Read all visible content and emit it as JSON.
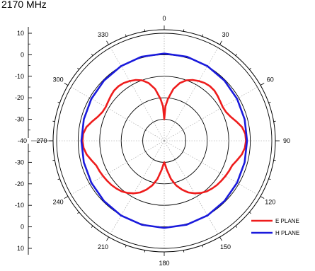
{
  "title": "2170 MHz",
  "chart_data": {
    "type": "line",
    "subtype": "polar",
    "title": "2170 MHz",
    "angle_unit": "degrees",
    "angle_zero": "top",
    "angle_direction": "clockwise",
    "angle_ticks": [
      "0",
      "30",
      "60",
      "90",
      "120",
      "150",
      "180",
      "210",
      "240",
      "270",
      "300",
      "330"
    ],
    "radial_range_db": [
      -40,
      10
    ],
    "radial_axis_ticks_top": [
      "10",
      "0",
      "-10",
      "-20",
      "-30",
      "-40"
    ],
    "radial_axis_ticks_bottom": [
      "-30",
      "-20",
      "-10",
      "0",
      "10"
    ],
    "grid": true,
    "legend_position": "bottom-right",
    "series": [
      {
        "name": "E PLANE",
        "color": "#ee1c1c",
        "theta": [
          0,
          2,
          5,
          10,
          15,
          20,
          25,
          30,
          35,
          40,
          45,
          50,
          55,
          60,
          65,
          70,
          75,
          80,
          85,
          90,
          95,
          100,
          105,
          110,
          115,
          120,
          125,
          130,
          135,
          140,
          145,
          150,
          155,
          160,
          165,
          170,
          175,
          178,
          180,
          182,
          185,
          190,
          195,
          200,
          205,
          210,
          215,
          220,
          225,
          230,
          235,
          240,
          245,
          250,
          255,
          260,
          265,
          270,
          275,
          280,
          285,
          290,
          295,
          300,
          305,
          310,
          315,
          320,
          325,
          330,
          335,
          340,
          345,
          350,
          355,
          358
        ],
        "r": [
          -30,
          -24,
          -20.5,
          -15.5,
          -12.2,
          -10.1,
          -8.8,
          -7.9,
          -7.2,
          -6.9,
          -7.0,
          -7.6,
          -8.2,
          -8.6,
          -8.3,
          -7.2,
          -5.3,
          -3.3,
          -2.2,
          -2.0,
          -2.4,
          -3.4,
          -5.0,
          -6.4,
          -6.8,
          -7.2,
          -7.6,
          -8.0,
          -8.6,
          -9.3,
          -10.4,
          -11.8,
          -13.5,
          -15.8,
          -18.5,
          -22.0,
          -26.5,
          -29,
          -30,
          -29,
          -26.5,
          -22.0,
          -18.5,
          -15.8,
          -13.5,
          -11.8,
          -10.4,
          -9.3,
          -8.6,
          -8.0,
          -7.6,
          -7.2,
          -6.8,
          -6.4,
          -5.0,
          -3.4,
          -2.4,
          -2.0,
          -2.2,
          -3.3,
          -5.3,
          -7.2,
          -8.3,
          -8.6,
          -8.2,
          -7.6,
          -7.0,
          -6.9,
          -7.2,
          -7.9,
          -8.8,
          -10.1,
          -12.2,
          -15.5,
          -20.5,
          -24
        ]
      },
      {
        "name": "H PLANE",
        "color": "#1a1adc",
        "theta": [
          0,
          15,
          30,
          45,
          60,
          75,
          90,
          105,
          120,
          135,
          150,
          165,
          180,
          195,
          210,
          225,
          240,
          255,
          270,
          285,
          300,
          315,
          330,
          345
        ],
        "r": [
          0.6,
          0.5,
          0.1,
          -0.4,
          -0.9,
          -1.3,
          -1.5,
          -1.3,
          -0.9,
          -0.4,
          0.1,
          0.4,
          0.5,
          0.4,
          0.1,
          -0.4,
          -0.9,
          -1.3,
          -1.5,
          -1.3,
          -0.9,
          -0.4,
          0.1,
          0.5
        ]
      }
    ]
  }
}
